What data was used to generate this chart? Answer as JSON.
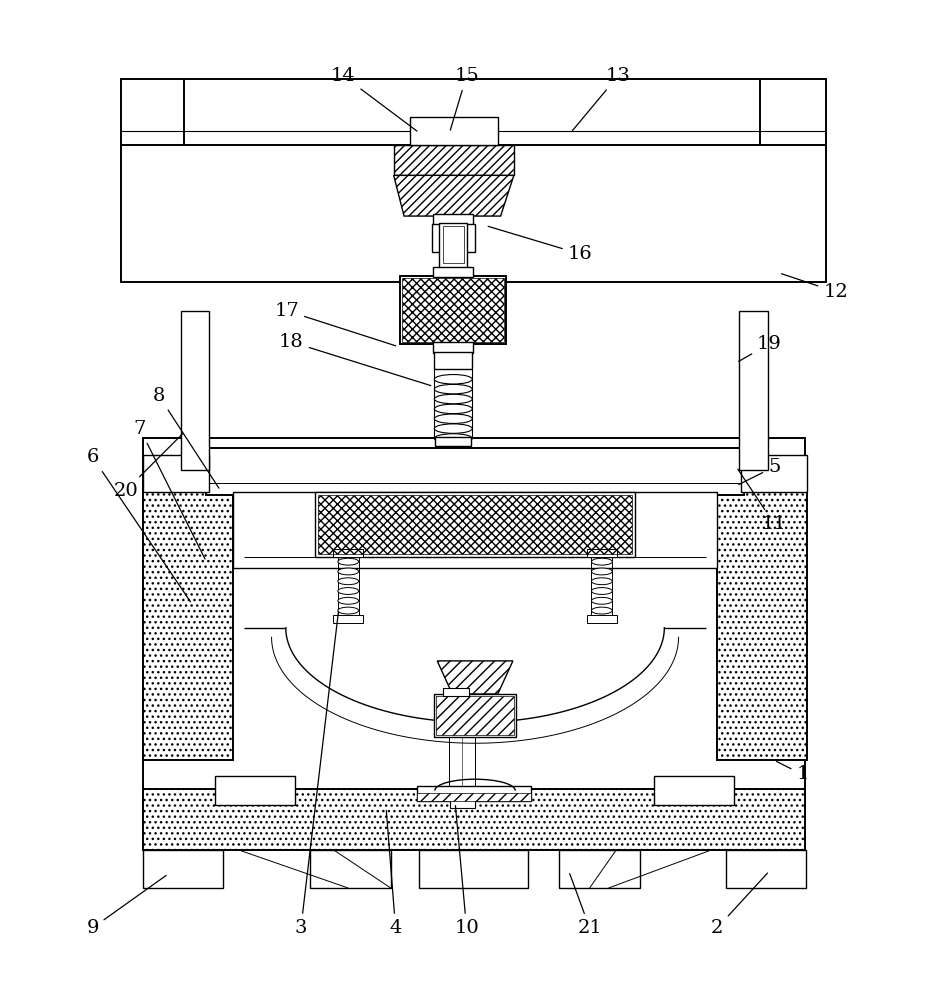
{
  "bg_color": "#ffffff",
  "line_color": "#000000",
  "fig_width": 9.52,
  "fig_height": 10.0,
  "annotation_data": [
    [
      "1",
      [
        0.845,
        0.21
      ],
      [
        0.815,
        0.225
      ]
    ],
    [
      "2",
      [
        0.755,
        0.048
      ],
      [
        0.81,
        0.108
      ]
    ],
    [
      "3",
      [
        0.315,
        0.048
      ],
      [
        0.355,
        0.385
      ]
    ],
    [
      "4",
      [
        0.415,
        0.048
      ],
      [
        0.405,
        0.175
      ]
    ],
    [
      "5",
      [
        0.815,
        0.535
      ],
      [
        0.775,
        0.515
      ]
    ],
    [
      "6",
      [
        0.095,
        0.545
      ],
      [
        0.2,
        0.39
      ]
    ],
    [
      "7",
      [
        0.145,
        0.575
      ],
      [
        0.215,
        0.435
      ]
    ],
    [
      "8",
      [
        0.165,
        0.61
      ],
      [
        0.23,
        0.51
      ]
    ],
    [
      "9",
      [
        0.095,
        0.048
      ],
      [
        0.175,
        0.105
      ]
    ],
    [
      "10",
      [
        0.49,
        0.048
      ],
      [
        0.478,
        0.18
      ]
    ],
    [
      "11",
      [
        0.815,
        0.475
      ],
      [
        0.775,
        0.535
      ]
    ],
    [
      "12",
      [
        0.88,
        0.72
      ],
      [
        0.82,
        0.74
      ]
    ],
    [
      "13",
      [
        0.65,
        0.948
      ],
      [
        0.6,
        0.888
      ]
    ],
    [
      "14",
      [
        0.36,
        0.948
      ],
      [
        0.44,
        0.888
      ]
    ],
    [
      "15",
      [
        0.49,
        0.948
      ],
      [
        0.472,
        0.888
      ]
    ],
    [
      "16",
      [
        0.61,
        0.76
      ],
      [
        0.51,
        0.79
      ]
    ],
    [
      "17",
      [
        0.3,
        0.7
      ],
      [
        0.418,
        0.662
      ]
    ],
    [
      "18",
      [
        0.305,
        0.667
      ],
      [
        0.455,
        0.62
      ]
    ],
    [
      "19",
      [
        0.81,
        0.665
      ],
      [
        0.775,
        0.645
      ]
    ],
    [
      "20",
      [
        0.13,
        0.51
      ],
      [
        0.192,
        0.572
      ]
    ],
    [
      "21",
      [
        0.62,
        0.048
      ],
      [
        0.598,
        0.108
      ]
    ]
  ]
}
